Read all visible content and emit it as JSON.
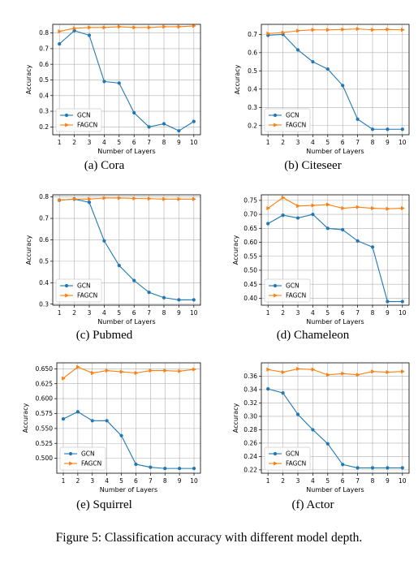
{
  "caption": "Figure 5: Classification accuracy with different model depth.",
  "chart_data": [
    {
      "type": "line",
      "caption": "(a) Cora",
      "xlabel": "Number of Layers",
      "ylabel": "Accuracy",
      "x": [
        1,
        2,
        3,
        4,
        5,
        6,
        7,
        8,
        9,
        10
      ],
      "xticks": [
        "1",
        "2",
        "3",
        "4",
        "5",
        "6",
        "7",
        "8",
        "9",
        "10"
      ],
      "ylim": [
        0.15,
        0.855
      ],
      "yticks": [
        0.2,
        0.3,
        0.4,
        0.5,
        0.6,
        0.7,
        0.8
      ],
      "ytick_labels": [
        "0.2",
        "0.3",
        "0.4",
        "0.5",
        "0.6",
        "0.7",
        "0.8"
      ],
      "grid": true,
      "legend": "lower-left",
      "series": [
        {
          "name": "GCN",
          "color": "#1f77b4",
          "marker": "circle",
          "values": [
            0.73,
            0.815,
            0.785,
            0.49,
            0.48,
            0.29,
            0.2,
            0.22,
            0.175,
            0.235
          ]
        },
        {
          "name": "FAGCN",
          "color": "#ff7f0e",
          "marker": "tri-right",
          "values": [
            0.81,
            0.83,
            0.835,
            0.835,
            0.84,
            0.835,
            0.835,
            0.84,
            0.84,
            0.845
          ]
        }
      ]
    },
    {
      "type": "line",
      "caption": "(b) Citeseer",
      "xlabel": "Number of Layers",
      "ylabel": "Accuracy",
      "x": [
        1,
        2,
        3,
        4,
        5,
        6,
        7,
        8,
        9,
        10
      ],
      "xticks": [
        "1",
        "2",
        "3",
        "4",
        "5",
        "6",
        "7",
        "8",
        "9",
        "10"
      ],
      "ylim": [
        0.15,
        0.755
      ],
      "yticks": [
        0.2,
        0.3,
        0.4,
        0.5,
        0.6,
        0.7
      ],
      "ytick_labels": [
        "0.2",
        "0.3",
        "0.4",
        "0.5",
        "0.6",
        "0.7"
      ],
      "grid": true,
      "legend": "lower-left",
      "series": [
        {
          "name": "GCN",
          "color": "#1f77b4",
          "marker": "circle",
          "values": [
            0.695,
            0.7,
            0.615,
            0.55,
            0.51,
            0.42,
            0.235,
            0.18,
            0.18,
            0.18
          ]
        },
        {
          "name": "FAGCN",
          "color": "#ff7f0e",
          "marker": "tri-right",
          "values": [
            0.705,
            0.71,
            0.72,
            0.725,
            0.725,
            0.727,
            0.73,
            0.725,
            0.727,
            0.725
          ]
        }
      ]
    },
    {
      "type": "line",
      "caption": "(c) Pubmed",
      "xlabel": "Number of Layers",
      "ylabel": "Accuracy",
      "x": [
        1,
        2,
        3,
        4,
        5,
        6,
        7,
        8,
        9,
        10
      ],
      "xticks": [
        "1",
        "2",
        "3",
        "4",
        "5",
        "6",
        "7",
        "8",
        "9",
        "10"
      ],
      "ylim": [
        0.295,
        0.81
      ],
      "yticks": [
        0.3,
        0.4,
        0.5,
        0.6,
        0.7,
        0.8
      ],
      "ytick_labels": [
        "0.3",
        "0.4",
        "0.5",
        "0.6",
        "0.7",
        "0.8"
      ],
      "grid": true,
      "legend": "lower-left",
      "series": [
        {
          "name": "GCN",
          "color": "#1f77b4",
          "marker": "circle",
          "values": [
            0.785,
            0.79,
            0.775,
            0.595,
            0.48,
            0.41,
            0.355,
            0.33,
            0.32,
            0.32
          ]
        },
        {
          "name": "FAGCN",
          "color": "#ff7f0e",
          "marker": "tri-right",
          "values": [
            0.785,
            0.79,
            0.79,
            0.795,
            0.795,
            0.793,
            0.792,
            0.79,
            0.79,
            0.79
          ]
        }
      ]
    },
    {
      "type": "line",
      "caption": "(d) Chameleon",
      "xlabel": "Number of Layers",
      "ylabel": "Accuracy",
      "x": [
        1,
        2,
        3,
        4,
        5,
        6,
        7,
        8,
        9,
        10
      ],
      "xticks": [
        "1",
        "2",
        "3",
        "4",
        "5",
        "6",
        "7",
        "8",
        "9",
        "10"
      ],
      "ylim": [
        0.375,
        0.77
      ],
      "yticks": [
        0.4,
        0.45,
        0.5,
        0.55,
        0.6,
        0.65,
        0.7,
        0.75
      ],
      "ytick_labels": [
        "0.40",
        "0.45",
        "0.50",
        "0.55",
        "0.60",
        "0.65",
        "0.70",
        "0.75"
      ],
      "grid": true,
      "legend": "lower-left",
      "series": [
        {
          "name": "GCN",
          "color": "#1f77b4",
          "marker": "circle",
          "values": [
            0.667,
            0.697,
            0.687,
            0.7,
            0.65,
            0.645,
            0.605,
            0.583,
            0.388,
            0.388
          ]
        },
        {
          "name": "FAGCN",
          "color": "#ff7f0e",
          "marker": "tri-right",
          "values": [
            0.722,
            0.76,
            0.73,
            0.732,
            0.735,
            0.722,
            0.726,
            0.722,
            0.72,
            0.722
          ]
        }
      ]
    },
    {
      "type": "line",
      "caption": "(e) Squirrel",
      "xlabel": "Number of Layers",
      "ylabel": "Accuracy",
      "x": [
        1,
        2,
        3,
        4,
        5,
        6,
        7,
        8,
        9,
        10
      ],
      "xticks": [
        "1",
        "2",
        "3",
        "4",
        "5",
        "6",
        "7",
        "8",
        "9",
        "10"
      ],
      "ylim": [
        0.475,
        0.66
      ],
      "yticks": [
        0.5,
        0.525,
        0.55,
        0.575,
        0.6,
        0.625,
        0.65
      ],
      "ytick_labels": [
        "0.500",
        "0.525",
        "0.550",
        "0.575",
        "0.600",
        "0.625",
        "0.650"
      ],
      "grid": true,
      "legend": "lower-left",
      "series": [
        {
          "name": "GCN",
          "color": "#1f77b4",
          "marker": "circle",
          "values": [
            0.566,
            0.578,
            0.563,
            0.563,
            0.538,
            0.49,
            0.485,
            0.483,
            0.483,
            0.483
          ]
        },
        {
          "name": "FAGCN",
          "color": "#ff7f0e",
          "marker": "tri-right",
          "values": [
            0.634,
            0.653,
            0.643,
            0.647,
            0.645,
            0.643,
            0.647,
            0.647,
            0.646,
            0.649
          ]
        }
      ]
    },
    {
      "type": "line",
      "caption": "(f) Actor",
      "xlabel": "Number of Layers",
      "ylabel": "Accuracy",
      "x": [
        1,
        2,
        3,
        4,
        5,
        6,
        7,
        8,
        9,
        10
      ],
      "xticks": [
        "1",
        "2",
        "3",
        "4",
        "5",
        "6",
        "7",
        "8",
        "9",
        "10"
      ],
      "ylim": [
        0.215,
        0.38
      ],
      "yticks": [
        0.22,
        0.24,
        0.26,
        0.28,
        0.3,
        0.32,
        0.34,
        0.36
      ],
      "ytick_labels": [
        "0.22",
        "0.24",
        "0.26",
        "0.28",
        "0.30",
        "0.32",
        "0.34",
        "0.36"
      ],
      "grid": true,
      "legend": "lower-left",
      "series": [
        {
          "name": "GCN",
          "color": "#1f77b4",
          "marker": "circle",
          "values": [
            0.341,
            0.335,
            0.303,
            0.28,
            0.259,
            0.228,
            0.223,
            0.223,
            0.223,
            0.223
          ]
        },
        {
          "name": "FAGCN",
          "color": "#ff7f0e",
          "marker": "tri-right",
          "values": [
            0.37,
            0.366,
            0.371,
            0.37,
            0.362,
            0.364,
            0.362,
            0.367,
            0.366,
            0.367
          ]
        }
      ]
    }
  ]
}
